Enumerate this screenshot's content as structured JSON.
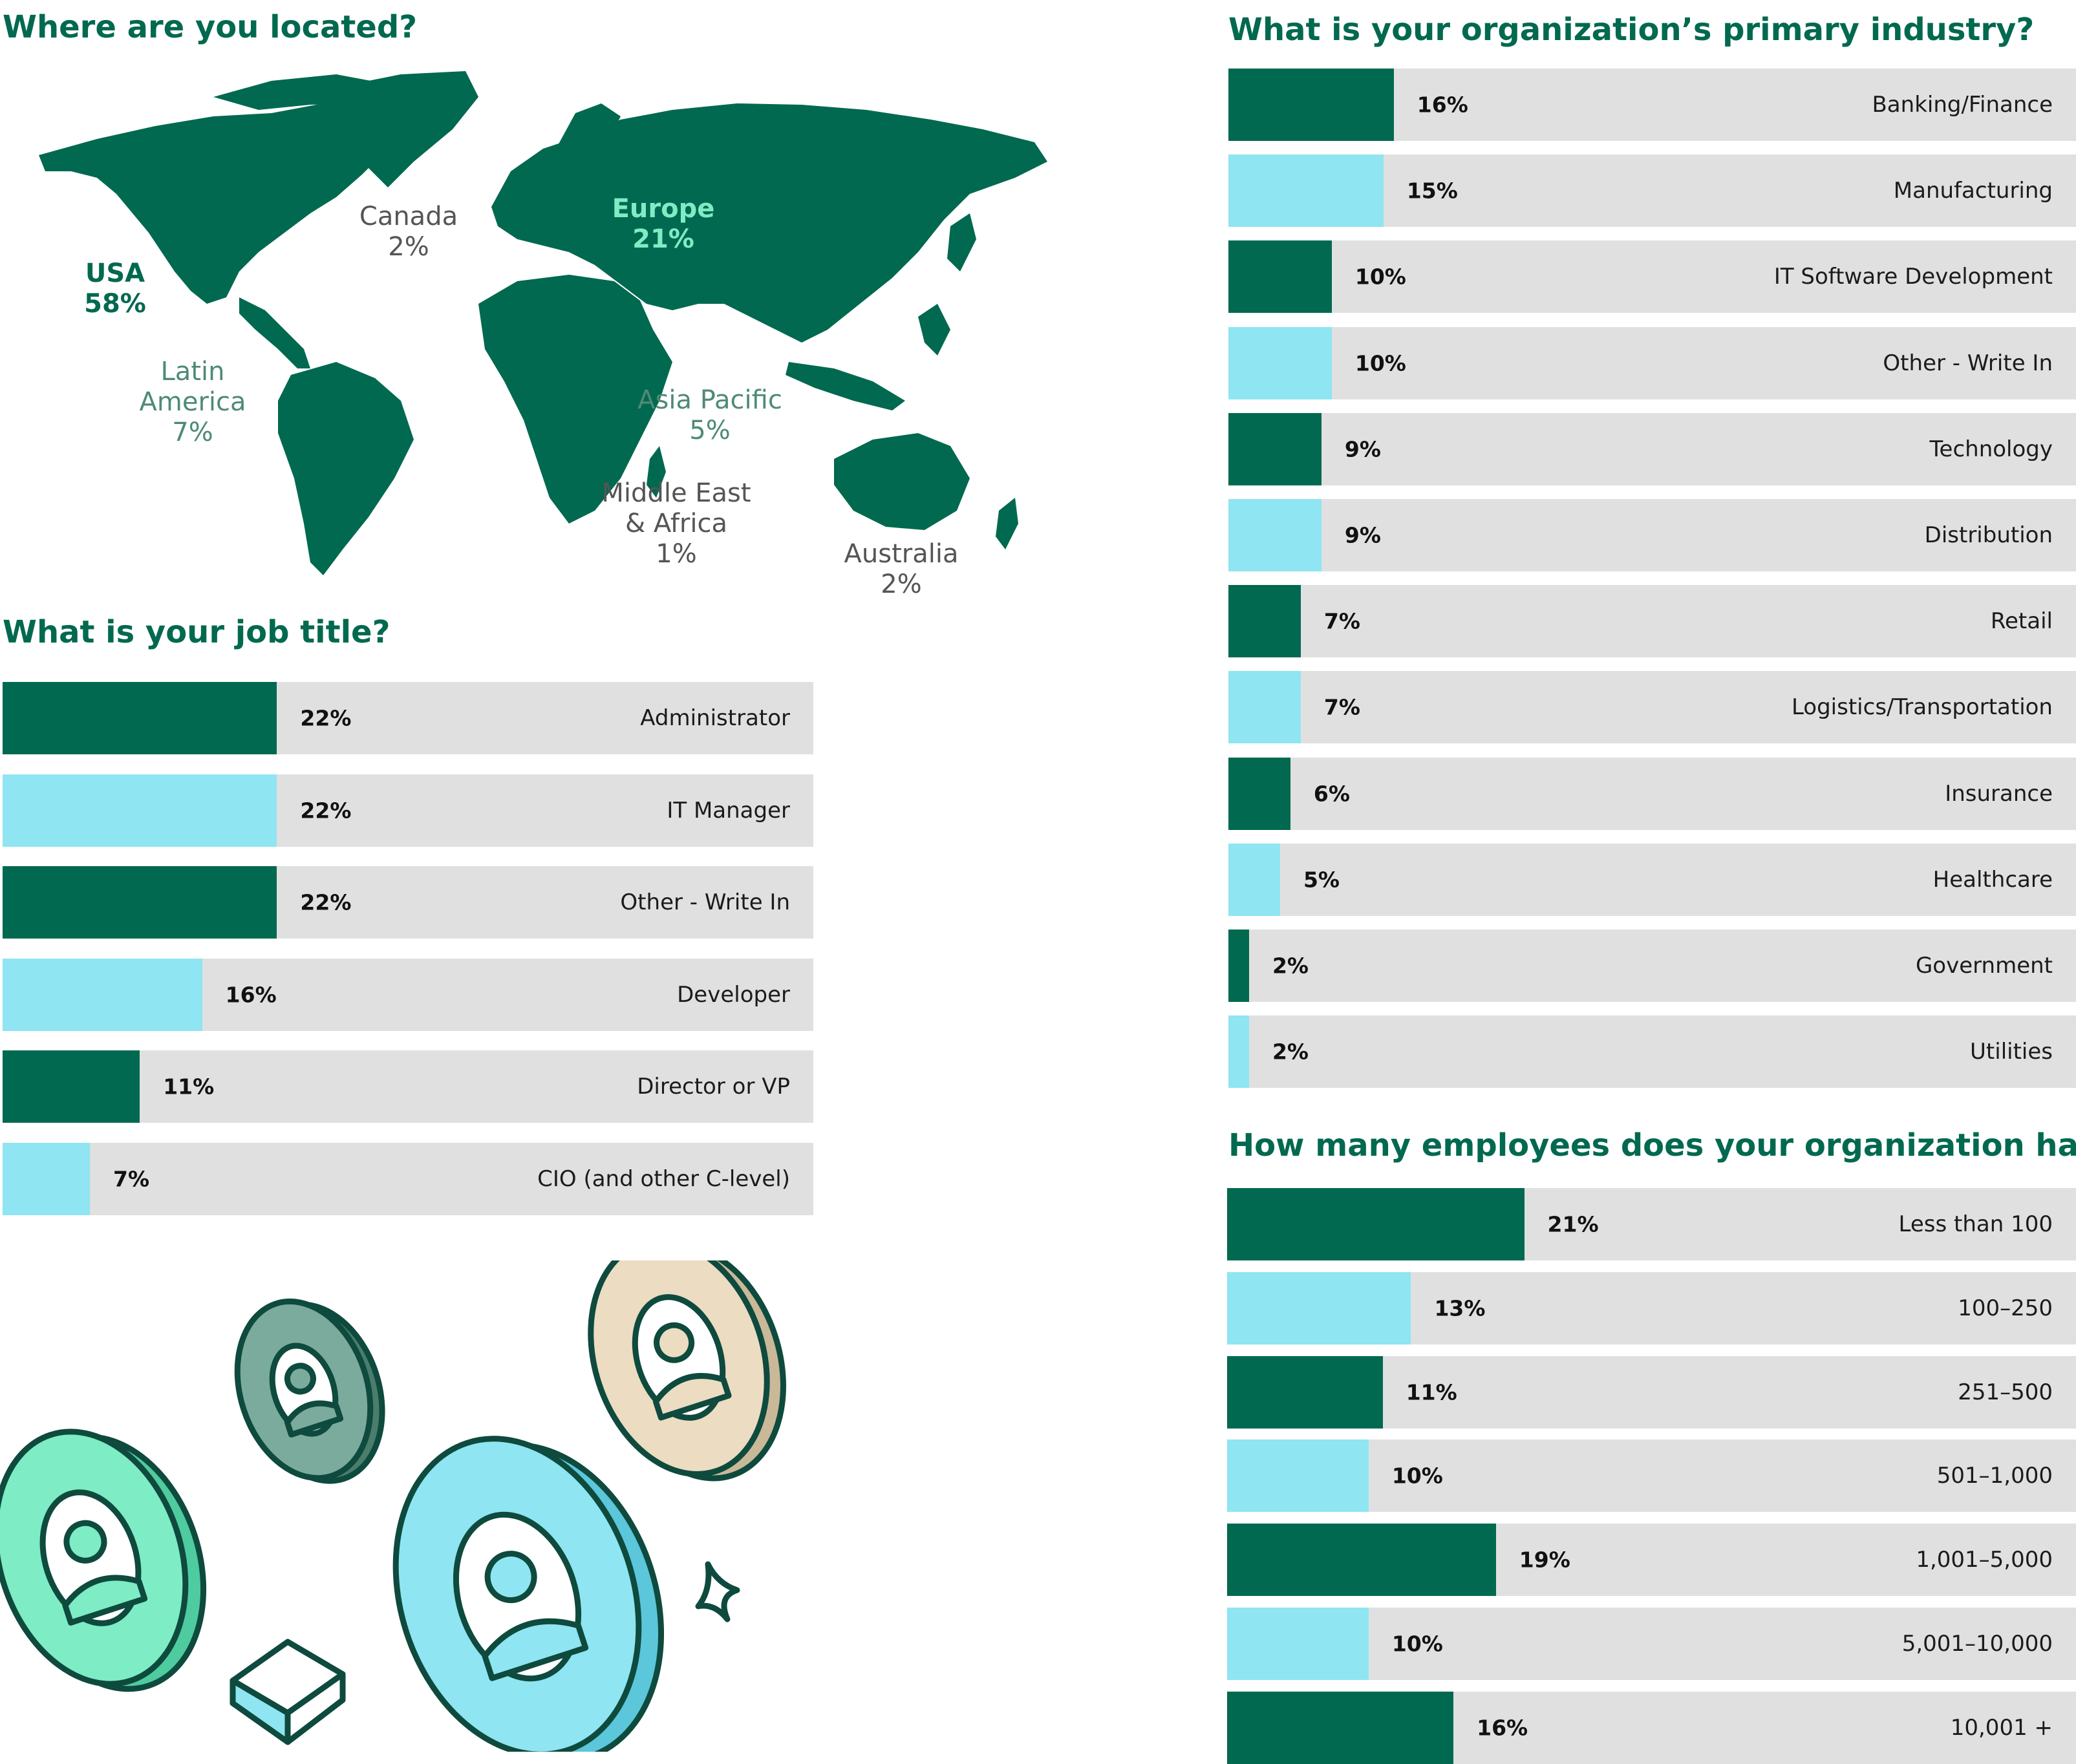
{
  "colors": {
    "dark_green": "#01694f",
    "light_blue": "#8fe5f1",
    "track": "#e0e0e0",
    "heading": "#01694f",
    "mint": "#7eecc4",
    "sand": "#ebdcc2"
  },
  "location": {
    "heading": "Where are you located?",
    "regions": [
      {
        "name": "USA",
        "value": "58%",
        "highlight": "dark"
      },
      {
        "name": "Canada",
        "value": "2%",
        "highlight": "none"
      },
      {
        "name": "Europe",
        "value": "21%",
        "highlight": "mint"
      },
      {
        "name": "Latin America",
        "value": "7%",
        "highlight": "none"
      },
      {
        "name": "Asia Pacific",
        "value": "5%",
        "highlight": "none"
      },
      {
        "name": "Middle East & Africa",
        "value": "1%",
        "highlight": "none"
      },
      {
        "name": "Australia",
        "value": "2%",
        "highlight": "none"
      }
    ]
  },
  "job_title": {
    "heading": "What is your job title?",
    "rows": [
      {
        "label": "Administrator",
        "value_label": "22%"
      },
      {
        "label": "IT Manager",
        "value_label": "22%"
      },
      {
        "label": "Other - Write In",
        "value_label": "22%"
      },
      {
        "label": "Developer",
        "value_label": "16%"
      },
      {
        "label": "Director or VP",
        "value_label": "11%"
      },
      {
        "label": "CIO (and other C-level)",
        "value_label": "7%"
      }
    ]
  },
  "industry": {
    "heading": "What is your organization’s primary industry?",
    "rows": [
      {
        "label": "Banking/Finance",
        "value_label": "16%"
      },
      {
        "label": "Manufacturing",
        "value_label": "15%"
      },
      {
        "label": "IT Software Development",
        "value_label": "10%"
      },
      {
        "label": "Other - Write In",
        "value_label": "10%"
      },
      {
        "label": "Technology",
        "value_label": "9%"
      },
      {
        "label": "Distribution",
        "value_label": "9%"
      },
      {
        "label": "Retail",
        "value_label": "7%"
      },
      {
        "label": "Logistics/Transportation",
        "value_label": "7%"
      },
      {
        "label": "Insurance",
        "value_label": "6%"
      },
      {
        "label": "Healthcare",
        "value_label": "5%"
      },
      {
        "label": "Government",
        "value_label": "2%"
      },
      {
        "label": "Utilities",
        "value_label": "2%"
      }
    ]
  },
  "employees": {
    "heading": "How many employees does your organization have?",
    "rows": [
      {
        "label": "Less than 100",
        "value_label": "21%"
      },
      {
        "label": "100–250",
        "value_label": "13%"
      },
      {
        "label": "251–500",
        "value_label": "11%"
      },
      {
        "label": "501–1,000",
        "value_label": "10%"
      },
      {
        "label": "1,001–5,000",
        "value_label": "19%"
      },
      {
        "label": "5,001–10,000",
        "value_label": "10%"
      },
      {
        "label": "10,001 +",
        "value_label": "16%"
      }
    ]
  },
  "chart_data": [
    {
      "type": "table",
      "title": "Where are you located?",
      "categories": [
        "USA",
        "Canada",
        "Europe",
        "Latin America",
        "Asia Pacific",
        "Middle East & Africa",
        "Australia"
      ],
      "values": [
        58,
        2,
        21,
        7,
        5,
        1,
        2
      ]
    },
    {
      "type": "bar",
      "title": "What is your job title?",
      "categories": [
        "Administrator",
        "IT Manager",
        "Other - Write In",
        "Developer",
        "Director or VP",
        "CIO (and other C-level)"
      ],
      "values": [
        22,
        22,
        22,
        16,
        11,
        7
      ],
      "xlim": [
        0,
        65
      ]
    },
    {
      "type": "bar",
      "title": "What is your organization’s primary industry?",
      "categories": [
        "Banking/Finance",
        "Manufacturing",
        "IT Software Development",
        "Other - Write In",
        "Technology",
        "Distribution",
        "Retail",
        "Logistics/Transportation",
        "Insurance",
        "Healthcare",
        "Government",
        "Utilities"
      ],
      "values": [
        16,
        15,
        10,
        10,
        9,
        9,
        7,
        7,
        6,
        5,
        2,
        2
      ],
      "xlim": [
        0,
        82
      ]
    },
    {
      "type": "bar",
      "title": "How many employees does your organization have?",
      "categories": [
        "Less than 100",
        "100–250",
        "251–500",
        "501–1,000",
        "1,001–5,000",
        "5,001–10,000",
        "10,001 +"
      ],
      "values": [
        21,
        13,
        11,
        10,
        19,
        10,
        16
      ],
      "xlim": [
        0,
        60
      ]
    }
  ]
}
